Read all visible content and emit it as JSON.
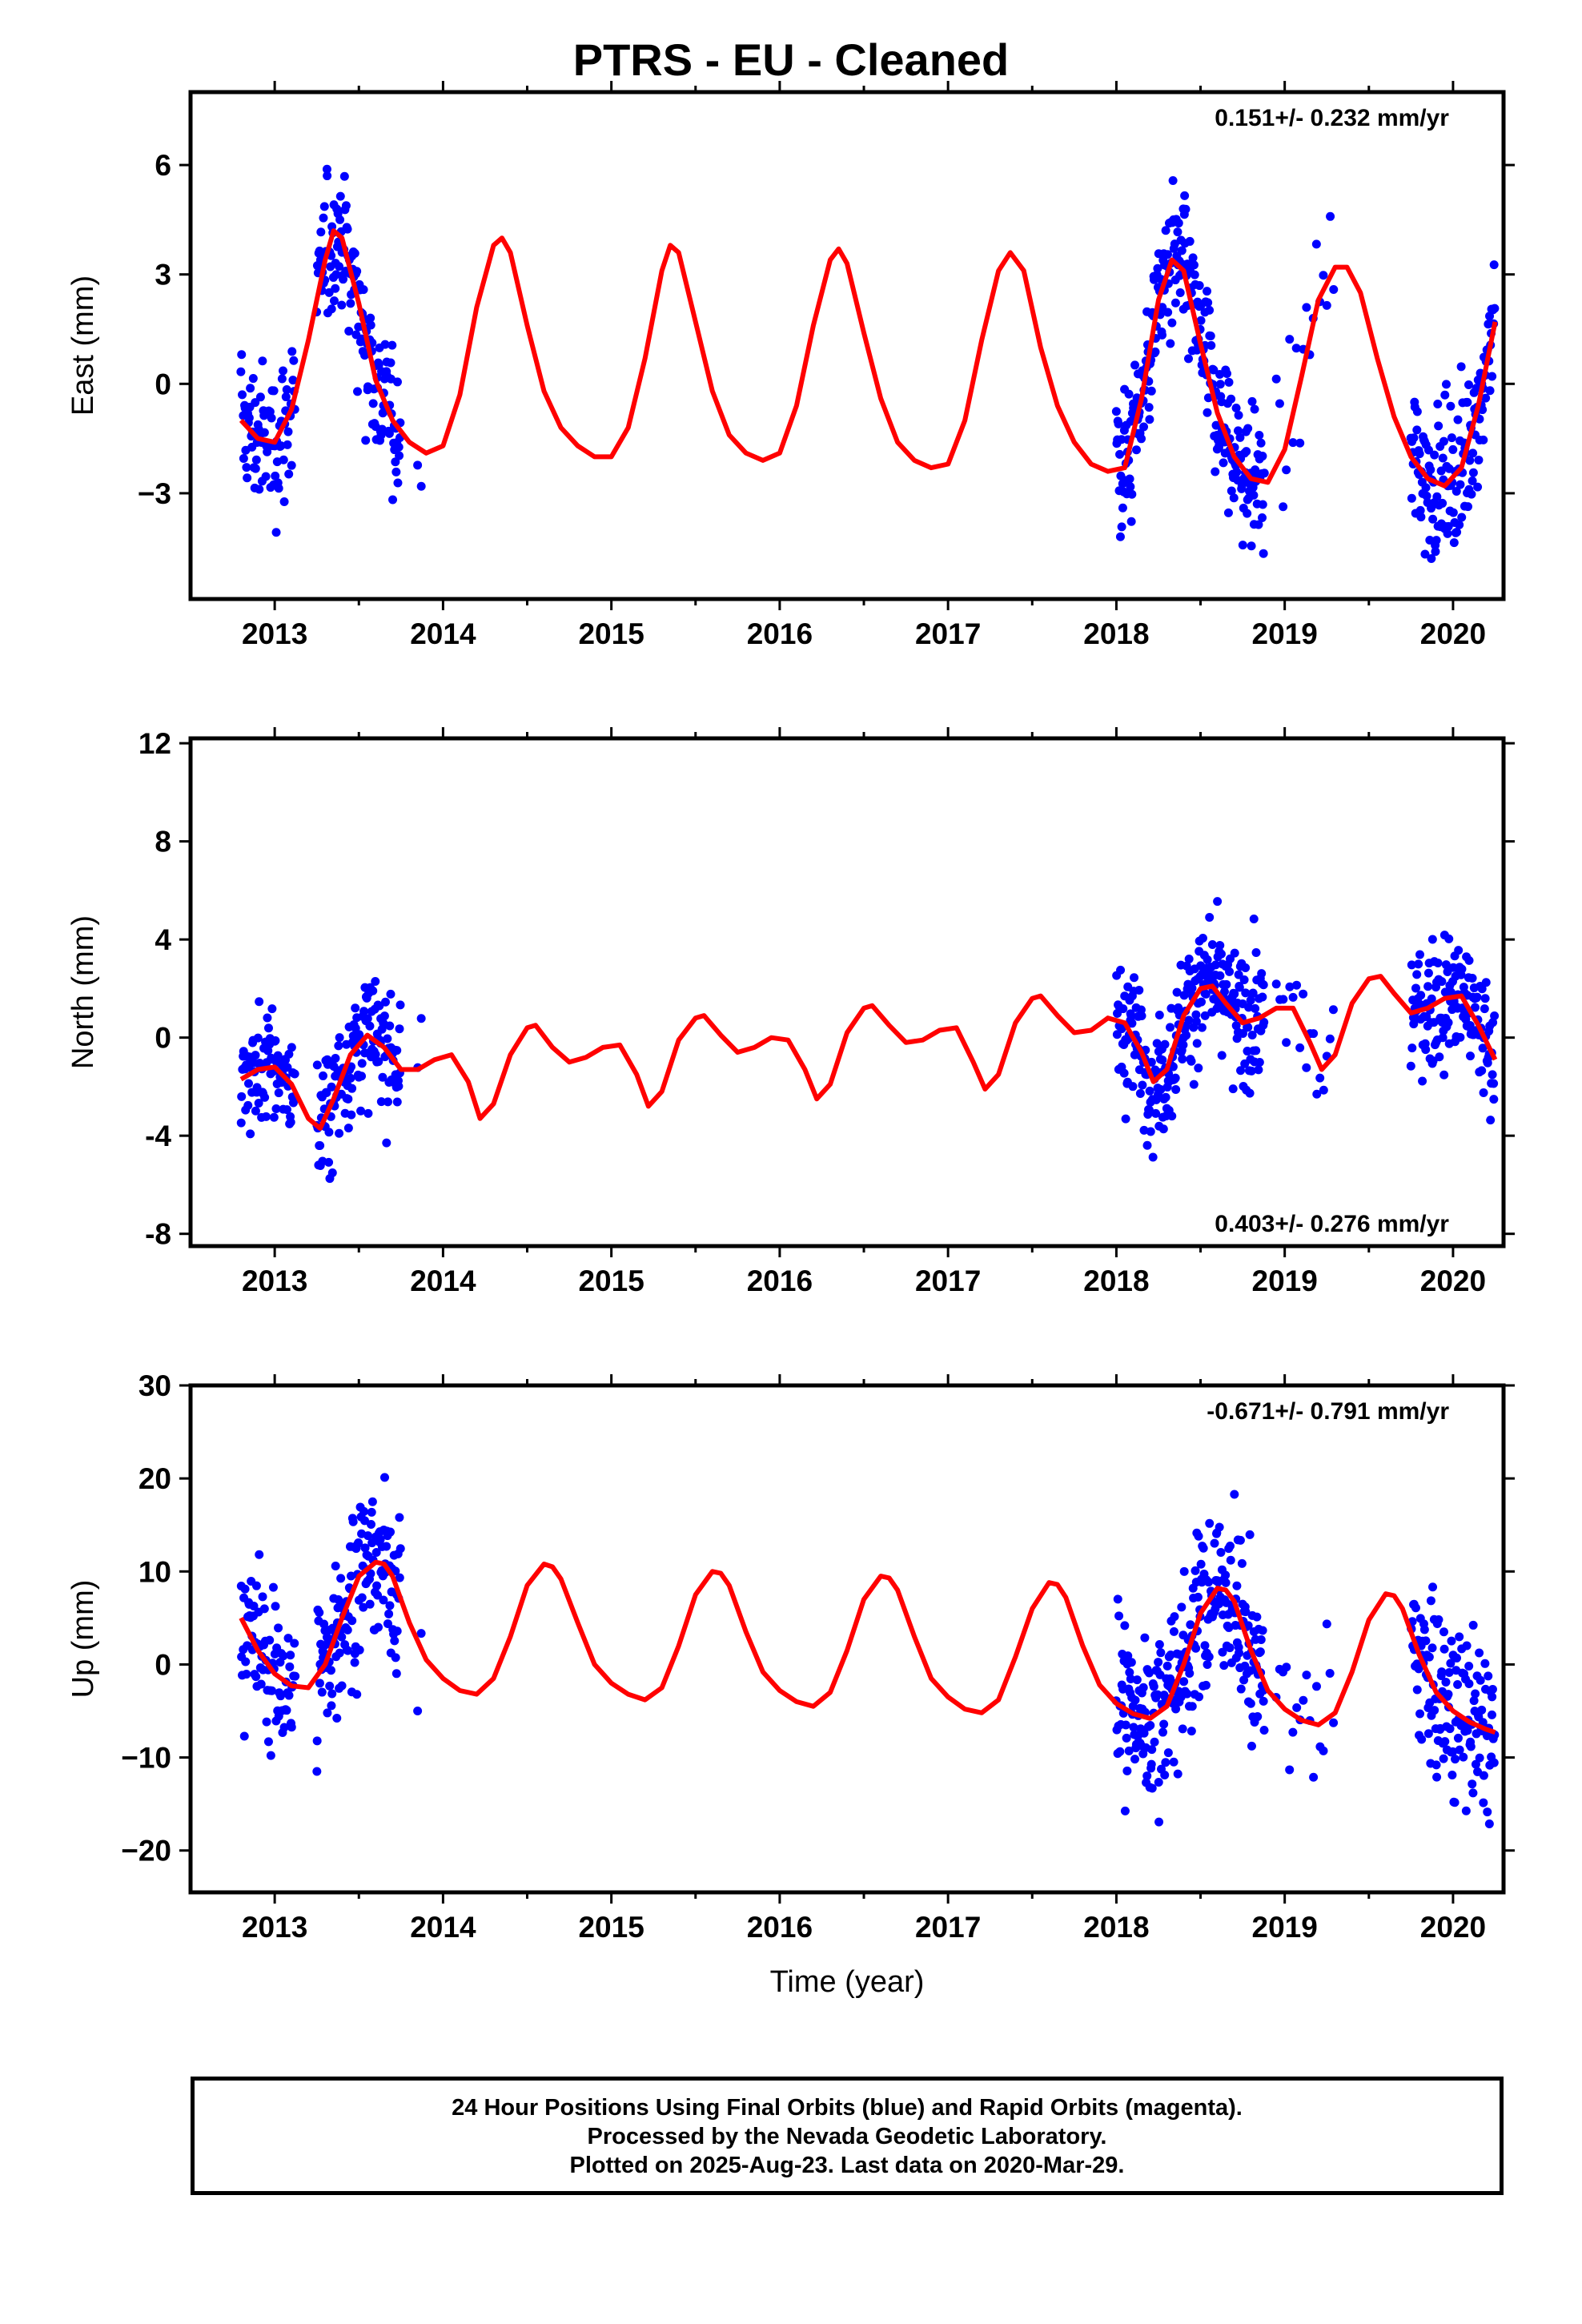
{
  "title": "PTRS  - EU - Cleaned",
  "colors": {
    "points": "#0000ff",
    "fit": "#ff0000",
    "frame": "#000000"
  },
  "footer": {
    "line1": "24 Hour Positions Using Final Orbits (blue) and Rapid Orbits (magenta).",
    "line2": "Processed by the Nevada Geodetic Laboratory.",
    "line3": "Plotted on 2025-Aug-23. Last data on 2020-Mar-29."
  },
  "chart_data": [
    {
      "type": "scatter",
      "name": "east",
      "ylabel": "East (mm)",
      "xlabel": "",
      "xlim": [
        2012.5,
        2020.3
      ],
      "ylim": [
        -5.9,
        8.0
      ],
      "xticks": [
        2013,
        2014,
        2015,
        2016,
        2017,
        2018,
        2019,
        2020
      ],
      "yticks": [
        -3,
        0,
        3,
        6
      ],
      "ytick_labels": [
        "−3",
        "0",
        "3",
        "6"
      ],
      "annotation": "0.151+/- 0.232 mm/yr",
      "annotation_pos": "top-right",
      "fit": {
        "x": [
          2012.8,
          2012.9,
          2013.0,
          2013.1,
          2013.2,
          2013.3,
          2013.35,
          2013.4,
          2013.5,
          2013.6,
          2013.7,
          2013.8,
          2013.9,
          2014.0,
          2014.1,
          2014.2,
          2014.3,
          2014.35,
          2014.4,
          2014.5,
          2014.6,
          2014.7,
          2014.8,
          2014.9,
          2015.0,
          2015.1,
          2015.2,
          2015.3,
          2015.35,
          2015.4,
          2015.5,
          2015.6,
          2015.7,
          2015.8,
          2015.9,
          2016.0,
          2016.1,
          2016.2,
          2016.3,
          2016.35,
          2016.4,
          2016.5,
          2016.6,
          2016.7,
          2016.8,
          2016.9,
          2017.0,
          2017.1,
          2017.2,
          2017.3,
          2017.37,
          2017.45,
          2017.55,
          2017.65,
          2017.75,
          2017.85,
          2017.95,
          2018.05,
          2018.15,
          2018.25,
          2018.33,
          2018.4,
          2018.5,
          2018.6,
          2018.7,
          2018.8,
          2018.9,
          2019.0,
          2019.1,
          2019.2,
          2019.3,
          2019.37,
          2019.45,
          2019.55,
          2019.65,
          2019.75,
          2019.85,
          2019.95,
          2020.05,
          2020.15,
          2020.25
        ],
        "y": [
          -1.0,
          -1.5,
          -1.6,
          -0.7,
          1.2,
          3.4,
          4.2,
          4.0,
          2.2,
          0.1,
          -1.0,
          -1.6,
          -1.9,
          -1.7,
          -0.3,
          2.1,
          3.8,
          4.0,
          3.6,
          1.6,
          -0.2,
          -1.2,
          -1.7,
          -2.0,
          -2.0,
          -1.2,
          0.7,
          3.1,
          3.8,
          3.6,
          1.7,
          -0.2,
          -1.4,
          -1.9,
          -2.1,
          -1.9,
          -0.6,
          1.6,
          3.4,
          3.7,
          3.3,
          1.4,
          -0.4,
          -1.6,
          -2.1,
          -2.3,
          -2.2,
          -1.0,
          1.2,
          3.1,
          3.6,
          3.1,
          1.0,
          -0.6,
          -1.6,
          -2.2,
          -2.4,
          -2.3,
          -0.4,
          2.3,
          3.4,
          3.1,
          1.1,
          -0.8,
          -2.0,
          -2.6,
          -2.7,
          -1.8,
          0.2,
          2.3,
          3.2,
          3.2,
          2.5,
          0.7,
          -0.9,
          -2.0,
          -2.6,
          -2.8,
          -2.3,
          -0.6,
          1.7
        ]
      }
    },
    {
      "type": "scatter",
      "name": "north",
      "ylabel": "North (mm)",
      "xlabel": "",
      "xlim": [
        2012.5,
        2020.3
      ],
      "ylim": [
        -8.5,
        12.2
      ],
      "xticks": [
        2013,
        2014,
        2015,
        2016,
        2017,
        2018,
        2019,
        2020
      ],
      "yticks": [
        -8,
        -4,
        0,
        4,
        8,
        12
      ],
      "ytick_labels": [
        "-8",
        "-4",
        "0",
        "4",
        "8",
        "12"
      ],
      "annotation": "0.403+/- 0.276 mm/yr",
      "annotation_pos": "bottom-right",
      "fit": {
        "x": [
          2012.8,
          2012.9,
          2013.0,
          2013.1,
          2013.2,
          2013.27,
          2013.35,
          2013.45,
          2013.55,
          2013.65,
          2013.75,
          2013.85,
          2013.95,
          2014.05,
          2014.15,
          2014.22,
          2014.3,
          2014.4,
          2014.5,
          2014.55,
          2014.65,
          2014.75,
          2014.85,
          2014.95,
          2015.05,
          2015.15,
          2015.22,
          2015.3,
          2015.4,
          2015.5,
          2015.55,
          2015.65,
          2015.75,
          2015.85,
          2015.95,
          2016.05,
          2016.15,
          2016.22,
          2016.3,
          2016.4,
          2016.5,
          2016.55,
          2016.65,
          2016.75,
          2016.85,
          2016.95,
          2017.05,
          2017.15,
          2017.22,
          2017.3,
          2017.4,
          2017.5,
          2017.55,
          2017.65,
          2017.75,
          2017.85,
          2017.95,
          2018.05,
          2018.15,
          2018.22,
          2018.3,
          2018.4,
          2018.5,
          2018.57,
          2018.65,
          2018.75,
          2018.85,
          2018.95,
          2019.05,
          2019.15,
          2019.22,
          2019.3,
          2019.4,
          2019.5,
          2019.57,
          2019.65,
          2019.75,
          2019.85,
          2019.95,
          2020.05,
          2020.15,
          2020.25
        ],
        "y": [
          -1.7,
          -1.3,
          -1.2,
          -1.9,
          -3.3,
          -3.7,
          -2.5,
          -0.7,
          0.1,
          -0.4,
          -1.3,
          -1.3,
          -0.9,
          -0.7,
          -1.8,
          -3.3,
          -2.7,
          -0.7,
          0.4,
          0.5,
          -0.4,
          -1.0,
          -0.8,
          -0.4,
          -0.3,
          -1.5,
          -2.8,
          -2.2,
          -0.1,
          0.8,
          0.9,
          0.1,
          -0.6,
          -0.4,
          0.0,
          -0.1,
          -1.3,
          -2.5,
          -1.9,
          0.2,
          1.2,
          1.3,
          0.5,
          -0.2,
          -0.1,
          0.3,
          0.4,
          -1.0,
          -2.1,
          -1.5,
          0.6,
          1.6,
          1.7,
          0.9,
          0.2,
          0.3,
          0.8,
          0.6,
          -0.6,
          -1.8,
          -1.3,
          0.9,
          2.0,
          2.1,
          1.4,
          0.6,
          0.8,
          1.2,
          1.2,
          -0.2,
          -1.3,
          -0.7,
          1.4,
          2.4,
          2.5,
          1.8,
          1.0,
          1.2,
          1.6,
          1.7,
          0.5,
          -0.9
        ]
      }
    },
    {
      "type": "scatter",
      "name": "up",
      "ylabel": "Up (mm)",
      "xlabel": "Time (year)",
      "xlim": [
        2012.5,
        2020.3
      ],
      "ylim": [
        -24.5,
        30.0
      ],
      "xticks": [
        2013,
        2014,
        2015,
        2016,
        2017,
        2018,
        2019,
        2020
      ],
      "yticks": [
        -20,
        -10,
        0,
        10,
        20,
        30
      ],
      "ytick_labels": [
        "−20",
        "−10",
        "0",
        "10",
        "20",
        "30"
      ],
      "annotation": "-0.671+/- 0.791 mm/yr",
      "annotation_pos": "top-right",
      "fit": {
        "x": [
          2012.8,
          2012.9,
          2013.0,
          2013.1,
          2013.2,
          2013.3,
          2013.4,
          2013.5,
          2013.6,
          2013.65,
          2013.7,
          2013.8,
          2013.9,
          2014.0,
          2014.1,
          2014.2,
          2014.3,
          2014.4,
          2014.5,
          2014.6,
          2014.65,
          2014.7,
          2014.8,
          2014.9,
          2015.0,
          2015.1,
          2015.2,
          2015.3,
          2015.4,
          2015.5,
          2015.6,
          2015.65,
          2015.7,
          2015.8,
          2015.9,
          2016.0,
          2016.1,
          2016.2,
          2016.3,
          2016.4,
          2016.5,
          2016.6,
          2016.65,
          2016.7,
          2016.8,
          2016.9,
          2017.0,
          2017.1,
          2017.2,
          2017.3,
          2017.4,
          2017.5,
          2017.6,
          2017.65,
          2017.7,
          2017.8,
          2017.9,
          2018.0,
          2018.1,
          2018.2,
          2018.3,
          2018.4,
          2018.5,
          2018.6,
          2018.65,
          2018.7,
          2018.8,
          2018.9,
          2019.0,
          2019.1,
          2019.2,
          2019.3,
          2019.4,
          2019.5,
          2019.6,
          2019.65,
          2019.7,
          2019.8,
          2019.9,
          2020.0,
          2020.1,
          2020.2,
          2020.25
        ],
        "y": [
          5.0,
          1.5,
          -1.0,
          -2.3,
          -2.5,
          0.0,
          5.0,
          9.5,
          11.0,
          10.8,
          9.5,
          4.5,
          0.5,
          -1.5,
          -2.8,
          -3.2,
          -1.5,
          3.0,
          8.5,
          10.8,
          10.5,
          9.2,
          4.5,
          0.0,
          -2.0,
          -3.2,
          -3.8,
          -2.5,
          2.0,
          7.5,
          10.0,
          9.8,
          8.5,
          3.5,
          -0.8,
          -2.8,
          -4.0,
          -4.5,
          -3.0,
          1.5,
          7.0,
          9.5,
          9.3,
          8.0,
          3.0,
          -1.5,
          -3.5,
          -4.8,
          -5.2,
          -3.8,
          0.8,
          6.0,
          8.8,
          8.6,
          7.2,
          2.0,
          -2.2,
          -4.2,
          -5.3,
          -5.8,
          -4.5,
          0.0,
          5.5,
          8.2,
          8.0,
          6.8,
          1.5,
          -2.8,
          -4.8,
          -6.0,
          -6.5,
          -5.2,
          -0.8,
          4.8,
          7.6,
          7.4,
          6.0,
          1.0,
          -3.0,
          -5.0,
          -6.2,
          -7.0,
          -7.3
        ]
      }
    }
  ]
}
